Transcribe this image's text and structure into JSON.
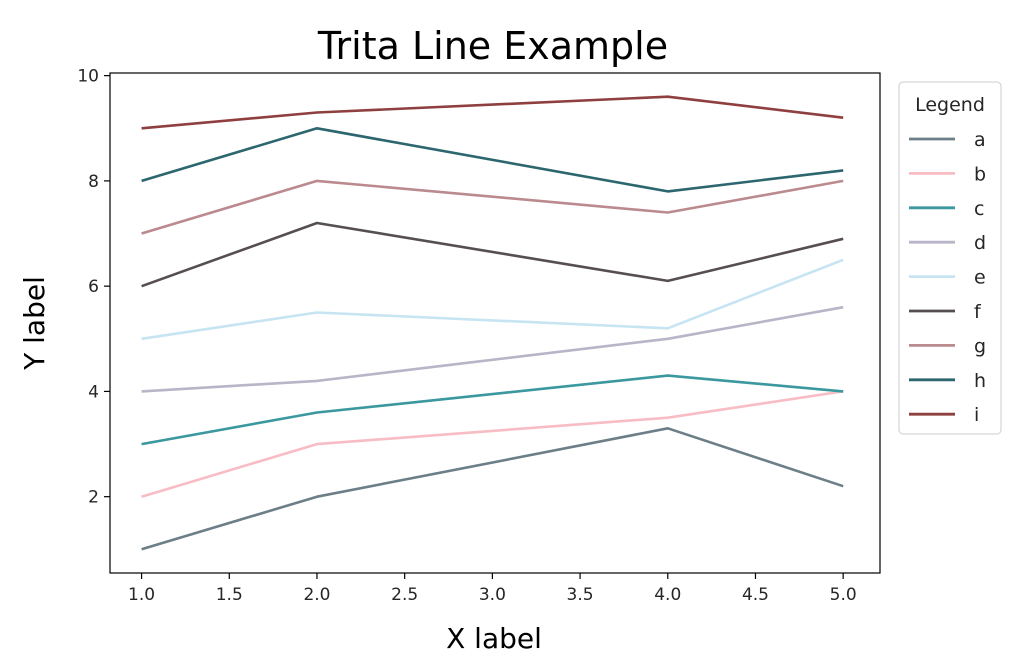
{
  "chart_data": {
    "type": "line",
    "title": "Trita Line Example",
    "xlabel": "X label",
    "ylabel": "Y label",
    "x": [
      1,
      2,
      4,
      5
    ],
    "xlim": [
      0.82,
      5.21
    ],
    "ylim": [
      0.55,
      10.05
    ],
    "xticks": [
      1.0,
      1.5,
      2.0,
      2.5,
      3.0,
      3.5,
      4.0,
      4.5,
      5.0
    ],
    "xtick_labels": [
      "1.0",
      "1.5",
      "2.0",
      "2.5",
      "3.0",
      "3.5",
      "4.0",
      "4.5",
      "5.0"
    ],
    "yticks": [
      2,
      4,
      6,
      8,
      10
    ],
    "ytick_labels": [
      "2",
      "4",
      "6",
      "8",
      "10"
    ],
    "grid": false,
    "legend": {
      "title": "Legend",
      "placement": "outside-right"
    },
    "series": [
      {
        "name": "a",
        "color": "#6c7f89",
        "values": [
          1.0,
          2.0,
          3.3,
          2.2
        ]
      },
      {
        "name": "b",
        "color": "#f8bcc4",
        "values": [
          2.0,
          3.0,
          3.5,
          4.0
        ]
      },
      {
        "name": "c",
        "color": "#3a989e",
        "values": [
          3.0,
          3.6,
          4.3,
          4.0
        ]
      },
      {
        "name": "d",
        "color": "#b9b4c8",
        "values": [
          4.0,
          4.2,
          5.0,
          5.6
        ]
      },
      {
        "name": "e",
        "color": "#c6e4f2",
        "values": [
          5.0,
          5.5,
          5.2,
          6.5
        ]
      },
      {
        "name": "f",
        "color": "#564e50",
        "values": [
          6.0,
          7.2,
          6.1,
          6.9
        ]
      },
      {
        "name": "g",
        "color": "#bb8a8e",
        "values": [
          7.0,
          8.0,
          7.4,
          8.0
        ]
      },
      {
        "name": "h",
        "color": "#2c666e",
        "values": [
          8.0,
          9.0,
          7.8,
          8.2
        ]
      },
      {
        "name": "i",
        "color": "#8f3f3f",
        "values": [
          9.0,
          9.3,
          9.6,
          9.2
        ]
      }
    ]
  }
}
